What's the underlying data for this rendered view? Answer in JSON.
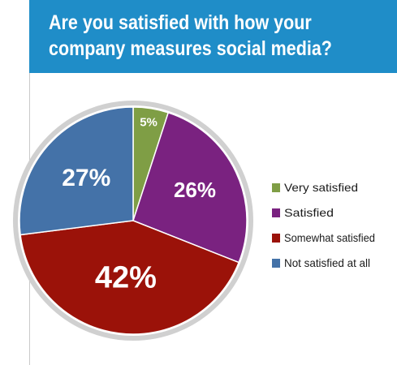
{
  "header": {
    "title_line1": "Are you satisfied with how your",
    "title_line2": "company measures social media?"
  },
  "colors": {
    "header_bg": "#1f8dc8",
    "ring": "#d0d0d0"
  },
  "chart_data": {
    "type": "pie",
    "title": "Are you satisfied with how your company measures social media?",
    "categories": [
      "Very satisfied",
      "Satisfied",
      "Somewhat satisfied",
      "Not satisfied at all"
    ],
    "values": [
      5,
      26,
      42,
      27
    ],
    "labels": [
      "5%",
      "26%",
      "42%",
      "27%"
    ],
    "colors": [
      "#7f9e45",
      "#7a2280",
      "#9b1209",
      "#4472a8"
    ],
    "legend_position": "right"
  }
}
